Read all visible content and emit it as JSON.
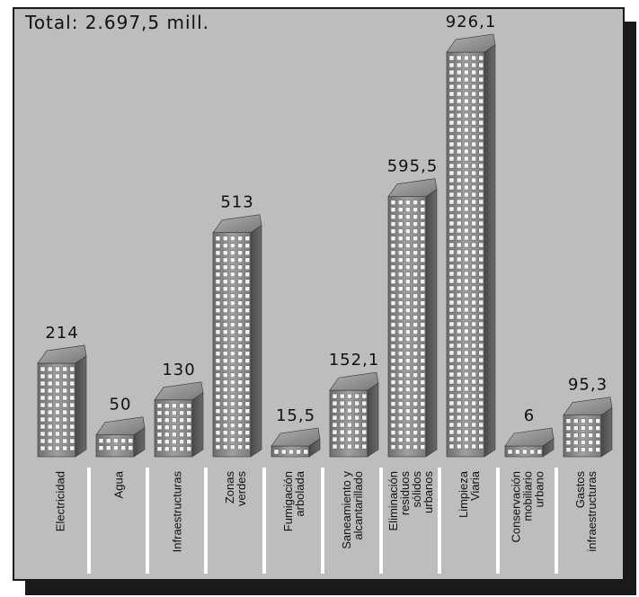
{
  "chart_data": {
    "type": "bar",
    "title": "Total: 2.697,5 mill.",
    "categories": [
      [
        "Electricidad"
      ],
      [
        "Agua"
      ],
      [
        "Infraestructuras"
      ],
      [
        "Zonas",
        "verdes"
      ],
      [
        "Fumigación",
        "arbolada"
      ],
      [
        "Saneamiento y",
        "alcantarillado"
      ],
      [
        "Eliminación",
        "residuos",
        "sólidos",
        "urbanos"
      ],
      [
        "Limpieza",
        "Viaria"
      ],
      [
        "Conservación",
        "mobiliario",
        "urbano"
      ],
      [
        "Gastos",
        "infraestructuras"
      ]
    ],
    "values": [
      214,
      50,
      130,
      513,
      15.5,
      152.1,
      595.5,
      926.1,
      6,
      95.3
    ],
    "value_labels": [
      "214",
      "50",
      "130",
      "513",
      "15,5",
      "152,1",
      "595,5",
      "926,1",
      "6",
      "95,3"
    ],
    "ylim": [
      0,
      926.1
    ],
    "grid": false,
    "colors": {
      "background": "#bdbdbd",
      "bar_front": "#8a8a8a",
      "bar_side": "#555555",
      "window": "#f2f2f2"
    }
  }
}
